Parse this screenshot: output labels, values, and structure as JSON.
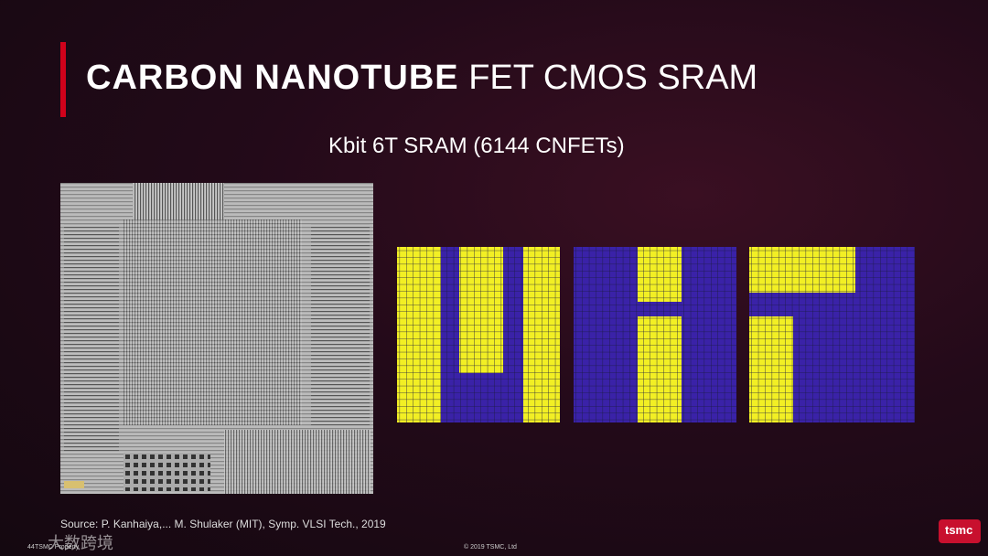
{
  "slide": {
    "title_bold": "CARBON NANOTUBE",
    "title_rest": "FET CMOS SRAM",
    "subtitle": "Kbit 6T SRAM (6144 CNFETs)",
    "source": "Source: P. Kanhaiya,... M. Shulaker (MIT), Symp. VLSI  Tech., 2019"
  },
  "footer": {
    "page_number": "44",
    "left": "TSMC Property",
    "center": "© 2019 TSMC, Ltd",
    "logo": "tsmc",
    "watermark": "大数跨境"
  }
}
